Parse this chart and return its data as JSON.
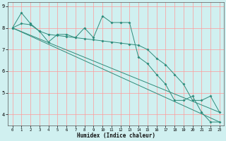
{
  "xlabel": "Humidex (Indice chaleur)",
  "bg_color": "#d0f0f0",
  "grid_color": "#ff9999",
  "line_color": "#2e8b7a",
  "xlim": [
    -0.5,
    23.5
  ],
  "ylim": [
    3.5,
    9.2
  ],
  "xticks": [
    0,
    1,
    2,
    3,
    4,
    5,
    6,
    7,
    8,
    9,
    10,
    11,
    12,
    13,
    14,
    15,
    16,
    17,
    18,
    19,
    20,
    21,
    22,
    23
  ],
  "yticks": [
    4,
    5,
    6,
    7,
    8,
    9
  ],
  "series1_x": [
    0,
    1,
    2,
    3,
    4,
    5,
    6,
    7,
    8,
    9,
    10,
    11,
    12,
    13,
    14,
    15,
    16,
    17,
    18,
    19,
    20,
    21,
    22,
    23
  ],
  "series1_y": [
    8.0,
    8.7,
    8.2,
    7.85,
    7.35,
    7.7,
    7.7,
    7.55,
    8.0,
    7.55,
    8.55,
    8.25,
    8.25,
    8.25,
    6.65,
    6.35,
    5.85,
    5.4,
    4.65,
    4.65,
    4.85,
    4.1,
    3.65,
    3.65
  ],
  "series2_x": [
    0,
    1,
    2,
    3,
    4,
    5,
    6,
    7,
    8,
    9,
    10,
    11,
    12,
    13,
    14,
    15,
    16,
    17,
    18,
    19,
    20,
    21,
    22,
    23
  ],
  "series2_y": [
    8.0,
    8.2,
    8.15,
    7.85,
    7.7,
    7.65,
    7.6,
    7.55,
    7.5,
    7.45,
    7.4,
    7.35,
    7.3,
    7.25,
    7.2,
    7.0,
    6.6,
    6.3,
    5.85,
    5.4,
    4.65,
    4.65,
    4.85,
    4.1
  ],
  "series3_x": [
    0,
    23
  ],
  "series3_y": [
    8.0,
    3.65
  ],
  "series4_x": [
    0,
    23
  ],
  "series4_y": [
    8.0,
    4.1
  ]
}
